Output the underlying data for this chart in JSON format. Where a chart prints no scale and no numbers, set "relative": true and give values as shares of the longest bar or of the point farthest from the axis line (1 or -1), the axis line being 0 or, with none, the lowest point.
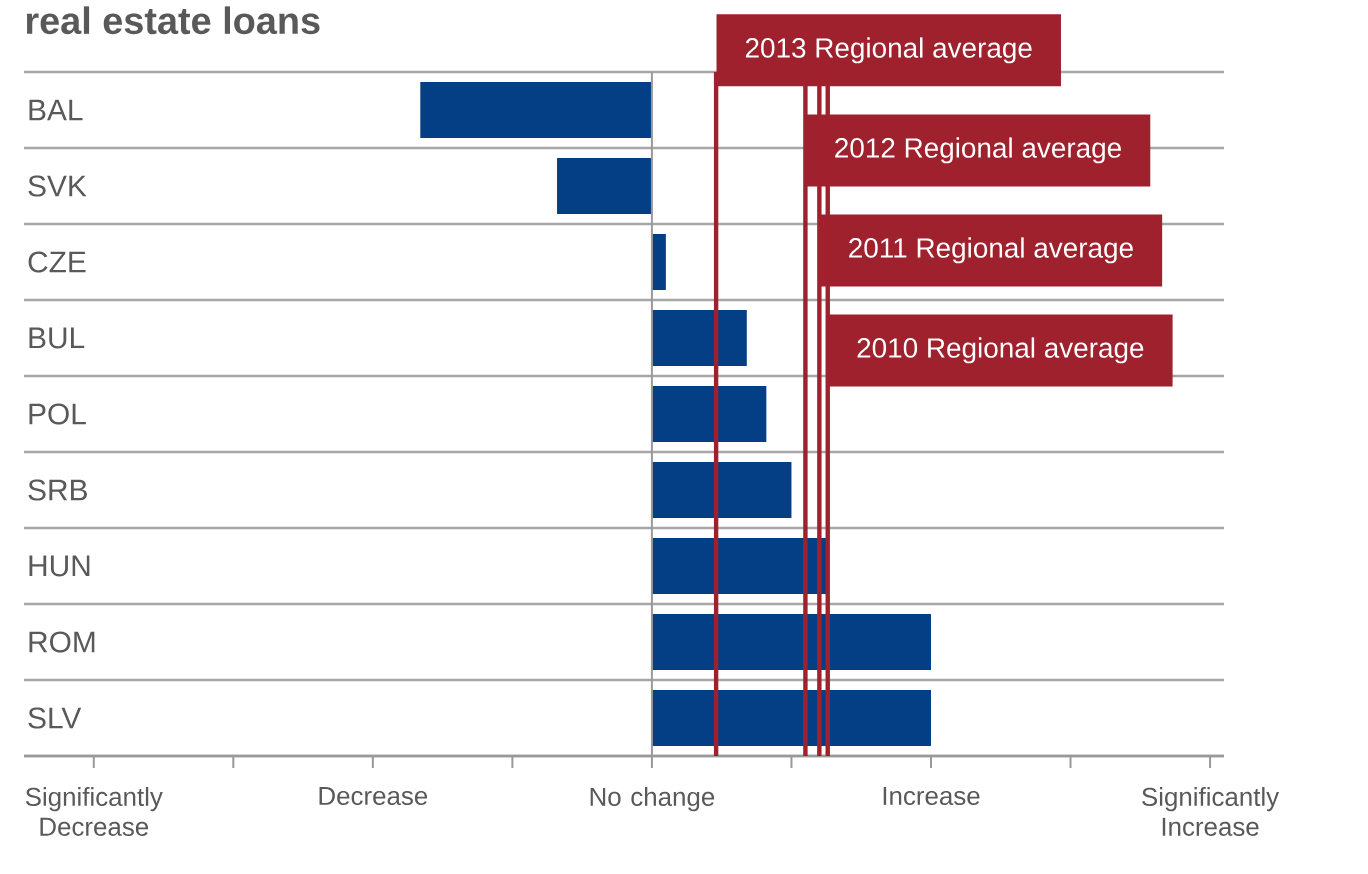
{
  "chart_data": {
    "type": "bar",
    "orientation": "horizontal",
    "title": "real estate loans",
    "categories": [
      "BAL",
      "SVK",
      "CZE",
      "BUL",
      "POL",
      "SRB",
      "HUN",
      "ROM",
      "SLV"
    ],
    "values": [
      -0.83,
      -0.34,
      0.05,
      0.34,
      0.41,
      0.5,
      0.63,
      1.0,
      1.0
    ],
    "color": "#043f86",
    "relative": true,
    "annotations": [
      "Significantly Decrease",
      "Decrease",
      "No change",
      "Increase",
      "Significantly Increase"
    ],
    "grid": "y",
    "ref_lines": [
      {
        "axis": "x",
        "value": 0.23,
        "label": "2013 Regional average",
        "color": "#a0212e"
      },
      {
        "axis": "x",
        "value": 0.55,
        "label": "2012 Regional average",
        "color": "#a0212e"
      },
      {
        "axis": "x",
        "value": 0.6,
        "label": "2011 Regional average",
        "color": "#a0212e"
      },
      {
        "axis": "x",
        "value": 0.63,
        "label": "2010 Regional average",
        "color": "#a0212e"
      }
    ]
  }
}
